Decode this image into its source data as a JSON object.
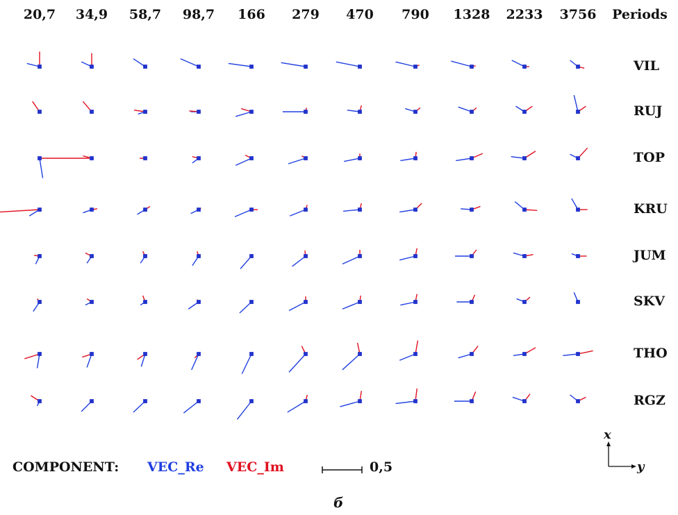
{
  "colors": {
    "real": "#1f3fe0",
    "imag": "#e01020",
    "station": "#2233cc",
    "text": "#111111"
  },
  "periods_header": "Periods",
  "periods": [
    "20,7",
    "34,9",
    "58,7",
    "98,7",
    "166",
    "279",
    "470",
    "790",
    "1328",
    "2233",
    "3756"
  ],
  "stations": [
    "VIL",
    "RUJ",
    "TOP",
    "KRU",
    "JUM",
    "SKV",
    "THO",
    "RGZ"
  ],
  "legend": {
    "component_label": "COMPONENT:",
    "real_label": "VEC_Re",
    "imag_label": "VEC_Im",
    "scale_value": "0,5"
  },
  "axes": {
    "x_label": "x",
    "y_label": "y"
  },
  "caption": "б",
  "vector_scale": {
    "unit": 0.5
  },
  "vectors": {
    "VIL": {
      "re": [
        [
          0.04,
          -0.16
        ],
        [
          0.06,
          -0.13
        ],
        [
          0.1,
          -0.15
        ],
        [
          0.1,
          -0.23
        ],
        [
          0.04,
          -0.29
        ],
        [
          0.05,
          -0.31
        ],
        [
          0.06,
          -0.3
        ],
        [
          0.06,
          -0.25
        ],
        [
          0.07,
          -0.26
        ],
        [
          0.08,
          -0.16
        ],
        [
          0.08,
          -0.1
        ]
      ],
      "im": [
        [
          0.19,
          0.0
        ],
        [
          0.17,
          0.0
        ],
        [
          0.0,
          0.02
        ],
        [
          0.0,
          0.0
        ],
        [
          0.0,
          -0.02
        ],
        [
          0.0,
          -0.02
        ],
        [
          0.0,
          0.01
        ],
        [
          0.02,
          0.05
        ],
        [
          0.01,
          0.05
        ],
        [
          0.0,
          0.06
        ],
        [
          -0.02,
          0.08
        ]
      ]
    },
    "RUJ": {
      "re": [
        [
          -0.01,
          -0.02
        ],
        [
          0.0,
          0.0
        ],
        [
          -0.03,
          -0.09
        ],
        [
          0.0,
          -0.1
        ],
        [
          -0.06,
          -0.2
        ],
        [
          0.0,
          -0.29
        ],
        [
          0.02,
          -0.16
        ],
        [
          0.04,
          -0.13
        ],
        [
          0.06,
          -0.17
        ],
        [
          0.07,
          -0.11
        ],
        [
          0.21,
          -0.05
        ]
      ],
      "im": [
        [
          0.13,
          -0.09
        ],
        [
          0.13,
          -0.11
        ],
        [
          0.02,
          -0.14
        ],
        [
          0.01,
          -0.12
        ],
        [
          0.04,
          -0.13
        ],
        [
          0.05,
          0.01
        ],
        [
          0.08,
          0.02
        ],
        [
          0.05,
          0.06
        ],
        [
          0.05,
          0.06
        ],
        [
          0.07,
          0.1
        ],
        [
          0.07,
          0.1
        ]
      ]
    },
    "TOP": {
      "re": [
        [
          -0.25,
          0.04
        ],
        [
          0.0,
          0.0
        ],
        [
          0.0,
          -0.05
        ],
        [
          -0.06,
          -0.08
        ],
        [
          -0.09,
          -0.2
        ],
        [
          -0.07,
          -0.22
        ],
        [
          -0.04,
          -0.2
        ],
        [
          -0.03,
          -0.19
        ],
        [
          -0.03,
          -0.2
        ],
        [
          0.02,
          -0.17
        ],
        [
          0.05,
          -0.1
        ]
      ],
      "im": [
        [
          0.0,
          0.63
        ],
        [
          0.03,
          -0.11
        ],
        [
          0.0,
          -0.07
        ],
        [
          0.02,
          -0.08
        ],
        [
          0.04,
          -0.08
        ],
        [
          0.03,
          -0.05
        ],
        [
          0.06,
          0.0
        ],
        [
          0.08,
          0.01
        ],
        [
          0.06,
          0.14
        ],
        [
          0.09,
          0.14
        ],
        [
          0.13,
          0.12
        ]
      ]
    },
    "KRU": {
      "re": [
        [
          -0.08,
          -0.13
        ],
        [
          -0.04,
          -0.11
        ],
        [
          -0.06,
          -0.1
        ],
        [
          -0.05,
          -0.1
        ],
        [
          -0.09,
          -0.21
        ],
        [
          -0.08,
          -0.2
        ],
        [
          -0.02,
          -0.21
        ],
        [
          -0.03,
          -0.2
        ],
        [
          0.01,
          -0.14
        ],
        [
          0.1,
          -0.12
        ],
        [
          0.14,
          -0.08
        ]
      ],
      "im": [
        [
          -0.03,
          -0.5
        ],
        [
          0.01,
          0.07
        ],
        [
          0.04,
          0.06
        ],
        [
          0.02,
          0.03
        ],
        [
          0.0,
          0.08
        ],
        [
          0.06,
          0.02
        ],
        [
          0.08,
          0.02
        ],
        [
          0.08,
          0.08
        ],
        [
          0.04,
          0.11
        ],
        [
          -0.01,
          0.16
        ],
        [
          0.0,
          0.12
        ]
      ]
    },
    "JUM": {
      "re": [
        [
          -0.1,
          -0.05
        ],
        [
          -0.09,
          -0.06
        ],
        [
          -0.09,
          -0.06
        ],
        [
          -0.12,
          -0.08
        ],
        [
          -0.16,
          -0.14
        ],
        [
          -0.13,
          -0.17
        ],
        [
          -0.1,
          -0.22
        ],
        [
          -0.05,
          -0.2
        ],
        [
          0.0,
          -0.21
        ],
        [
          0.04,
          -0.14
        ],
        [
          0.03,
          -0.08
        ]
      ],
      "im": [
        [
          0.01,
          -0.07
        ],
        [
          0.04,
          -0.08
        ],
        [
          0.06,
          -0.03
        ],
        [
          0.06,
          -0.02
        ],
        [
          0.0,
          0.0
        ],
        [
          0.07,
          -0.01
        ],
        [
          0.08,
          0.0
        ],
        [
          0.1,
          0.02
        ],
        [
          0.08,
          0.06
        ],
        [
          0.02,
          0.11
        ],
        [
          0.0,
          0.11
        ]
      ]
    },
    "SKV": {
      "re": [
        [
          -0.12,
          -0.08
        ],
        [
          -0.04,
          -0.08
        ],
        [
          -0.04,
          -0.06
        ],
        [
          -0.09,
          -0.13
        ],
        [
          -0.14,
          -0.15
        ],
        [
          -0.11,
          -0.21
        ],
        [
          -0.09,
          -0.22
        ],
        [
          -0.04,
          -0.19
        ],
        [
          0.0,
          -0.19
        ],
        [
          0.04,
          -0.1
        ],
        [
          0.12,
          -0.05
        ]
      ],
      "im": [
        [
          0.04,
          -0.03
        ],
        [
          0.04,
          -0.06
        ],
        [
          0.08,
          -0.03
        ],
        [
          0.03,
          -0.02
        ],
        [
          0.0,
          0.0
        ],
        [
          0.07,
          0.0
        ],
        [
          0.08,
          0.01
        ],
        [
          0.1,
          0.02
        ],
        [
          0.09,
          0.04
        ],
        [
          0.06,
          0.07
        ],
        [
          0.0,
          0.0
        ]
      ]
    },
    "THO": {
      "re": [
        [
          -0.18,
          -0.03
        ],
        [
          -0.17,
          -0.06
        ],
        [
          -0.16,
          -0.05
        ],
        [
          -0.2,
          -0.09
        ],
        [
          -0.25,
          -0.12
        ],
        [
          -0.23,
          -0.21
        ],
        [
          -0.2,
          -0.22
        ],
        [
          -0.08,
          -0.2
        ],
        [
          -0.05,
          -0.17
        ],
        [
          -0.02,
          -0.14
        ],
        [
          -0.02,
          -0.19
        ]
      ],
      "im": [
        [
          -0.06,
          -0.19
        ],
        [
          -0.04,
          -0.12
        ],
        [
          -0.07,
          -0.1
        ],
        [
          -0.05,
          -0.05
        ],
        [
          0.0,
          0.0
        ],
        [
          0.1,
          -0.05
        ],
        [
          0.14,
          -0.03
        ],
        [
          0.17,
          0.03
        ],
        [
          0.1,
          0.08
        ],
        [
          0.08,
          0.14
        ],
        [
          0.04,
          0.19
        ]
      ]
    },
    "RGZ": {
      "re": [
        [
          -0.06,
          -0.03
        ],
        [
          -0.13,
          -0.13
        ],
        [
          -0.14,
          -0.15
        ],
        [
          -0.15,
          -0.19
        ],
        [
          -0.23,
          -0.18
        ],
        [
          -0.14,
          -0.23
        ],
        [
          -0.07,
          -0.25
        ],
        [
          -0.03,
          -0.25
        ],
        [
          0.0,
          -0.22
        ],
        [
          0.05,
          -0.15
        ],
        [
          0.08,
          -0.1
        ]
      ],
      "im": [
        [
          0.07,
          -0.11
        ],
        [
          0.0,
          0.0
        ],
        [
          0.02,
          0.02
        ],
        [
          0.0,
          0.0
        ],
        [
          0.0,
          0.0
        ],
        [
          0.08,
          0.02
        ],
        [
          0.13,
          0.02
        ],
        [
          0.16,
          0.02
        ],
        [
          0.12,
          0.05
        ],
        [
          0.09,
          0.07
        ],
        [
          0.05,
          0.1
        ]
      ]
    }
  }
}
